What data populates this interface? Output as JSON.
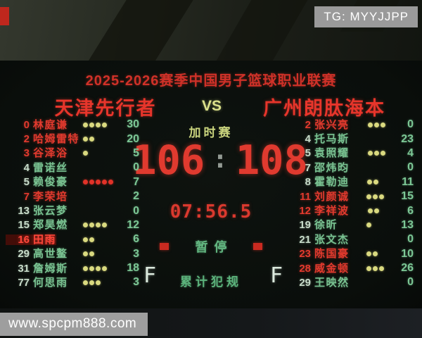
{
  "watermarks": {
    "tg": "TG: MYYJJPP",
    "site": "www.spcpm888.com"
  },
  "board": {
    "title": "2025-2026赛季中国男子篮球职业联赛",
    "home_team": "天津先行者",
    "vs": "VS",
    "away_team": "广州朗肽海本",
    "period": "加时赛",
    "home_score": "106",
    "score_separator": ":",
    "away_score": "108",
    "game_clock": "07:56.5",
    "timeout_label": "暂停",
    "fouls_title": "累计犯规",
    "home_foul_letter": "F",
    "away_foul_letter": "F"
  },
  "home_players": [
    {
      "number": "0",
      "name": "林庭谦",
      "fouls": 4,
      "points": "30",
      "on_court": true
    },
    {
      "number": "2",
      "name": "哈姆雷特",
      "fouls": 2,
      "points": "20",
      "on_court": true
    },
    {
      "number": "3",
      "name": "谷泽浴",
      "fouls": 1,
      "points": "5",
      "on_court": true
    },
    {
      "number": "4",
      "name": "雷诺丝",
      "fouls": 0,
      "points": "0",
      "on_court": false
    },
    {
      "number": "5",
      "name": "赖俊豪",
      "fouls": 5,
      "points": "7",
      "on_court": false,
      "foul_dot_color": "red"
    },
    {
      "number": "7",
      "name": "李荣培",
      "fouls": 0,
      "points": "2",
      "on_court": true
    },
    {
      "number": "13",
      "name": "张云梦",
      "fouls": 0,
      "points": "0",
      "on_court": false
    },
    {
      "number": "15",
      "name": "郑昊燃",
      "fouls": 4,
      "points": "12",
      "on_court": false
    },
    {
      "number": "16",
      "name": "田雨",
      "fouls": 2,
      "points": "6",
      "on_court": true,
      "highlight": true
    },
    {
      "number": "29",
      "name": "高世鳌",
      "fouls": 2,
      "points": "3",
      "on_court": false
    },
    {
      "number": "31",
      "name": "詹姆斯",
      "fouls": 4,
      "points": "18",
      "on_court": false
    },
    {
      "number": "77",
      "name": "何思雨",
      "fouls": 3,
      "points": "3",
      "on_court": false
    }
  ],
  "away_players": [
    {
      "number": "2",
      "name": "张兴亮",
      "fouls": 3,
      "points": "0",
      "on_court": true
    },
    {
      "number": "4",
      "name": "托马斯",
      "fouls": 0,
      "points": "23",
      "on_court": false
    },
    {
      "number": "5",
      "name": "袁照耀",
      "fouls": 3,
      "points": "4",
      "on_court": false
    },
    {
      "number": "7",
      "name": "邵炜昀",
      "fouls": 0,
      "points": "0",
      "on_court": false
    },
    {
      "number": "8",
      "name": "霍勒迪",
      "fouls": 2,
      "points": "11",
      "on_court": false
    },
    {
      "number": "11",
      "name": "刘颜诚",
      "fouls": 3,
      "points": "15",
      "on_court": true
    },
    {
      "number": "12",
      "name": "李祥波",
      "fouls": 2,
      "points": "6",
      "on_court": true
    },
    {
      "number": "19",
      "name": "徐昕",
      "fouls": 1,
      "points": "13",
      "on_court": false
    },
    {
      "number": "21",
      "name": "张文杰",
      "fouls": 0,
      "points": "0",
      "on_court": false
    },
    {
      "number": "23",
      "name": "陈国豪",
      "fouls": 2,
      "points": "10",
      "on_court": true
    },
    {
      "number": "28",
      "name": "威金顿",
      "fouls": 3,
      "points": "26",
      "on_court": true
    },
    {
      "number": "29",
      "name": "王映然",
      "fouls": 0,
      "points": "0",
      "on_court": false
    }
  ],
  "colors": {
    "led_red": "#e23a2e",
    "led_green": "#79c291",
    "score_green": "#7cc795",
    "yellow_dot": "#d9d97f",
    "red_dot": "#e03228",
    "accent_yellow": "#dce18b",
    "watermark_gray": "#9a9a9a",
    "board_black": "#0b0f0c"
  }
}
